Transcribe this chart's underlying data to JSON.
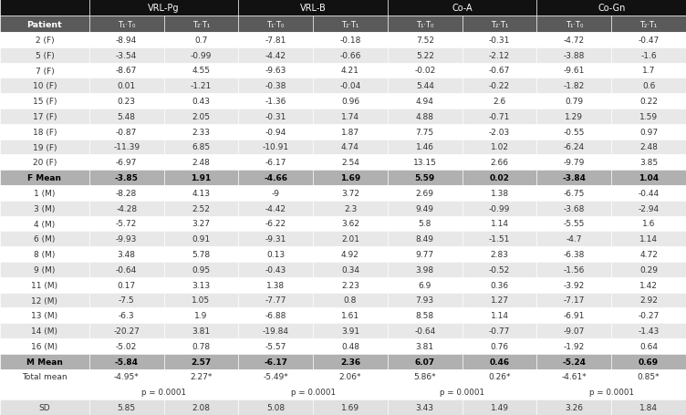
{
  "col_groups": [
    "VRL-Pg",
    "VRL-B",
    "Co-A",
    "Co-Gn"
  ],
  "col_headers": [
    "T₁·T₀",
    "T₂·T₁",
    "T₁·T₀",
    "T₂·T₁",
    "T₁·T₀",
    "T₂·T₁",
    "T₁·T₀",
    "T₂·T₁"
  ],
  "row_labels": [
    "2 (F)",
    "5 (F)",
    "7 (F)",
    "10 (F)",
    "15 (F)",
    "17 (F)",
    "18 (F)",
    "19 (F)",
    "20 (F)",
    "F Mean",
    "1 (M)",
    "3 (M)",
    "4 (M)",
    "6 (M)",
    "8 (M)",
    "9 (M)",
    "11 (M)",
    "12 (M)",
    "13 (M)",
    "14 (M)",
    "16 (M)",
    "M Mean",
    "Total mean",
    "p_row",
    "SD"
  ],
  "table_data": [
    [
      "-8.94",
      "0.7",
      "-7.81",
      "-0.18",
      "7.52",
      "-0.31",
      "-4.72",
      "-0.47"
    ],
    [
      "-3.54",
      "-0.99",
      "-4.42",
      "-0.66",
      "5.22",
      "-2.12",
      "-3.88",
      "-1.6"
    ],
    [
      "-8.67",
      "4.55",
      "-9.63",
      "4.21",
      "-0.02",
      "-0.67",
      "-9.61",
      "1.7"
    ],
    [
      "0.01",
      "-1.21",
      "-0.38",
      "-0.04",
      "5.44",
      "-0.22",
      "-1.82",
      "0.6"
    ],
    [
      "0.23",
      "0.43",
      "-1.36",
      "0.96",
      "4.94",
      "2.6",
      "0.79",
      "0.22"
    ],
    [
      "5.48",
      "2.05",
      "-0.31",
      "1.74",
      "4.88",
      "-0.71",
      "1.29",
      "1.59"
    ],
    [
      "-0.87",
      "2.33",
      "-0.94",
      "1.87",
      "7.75",
      "-2.03",
      "-0.55",
      "0.97"
    ],
    [
      "-11.39",
      "6.85",
      "-10.91",
      "4.74",
      "1.46",
      "1.02",
      "-6.24",
      "2.48"
    ],
    [
      "-6.97",
      "2.48",
      "-6.17",
      "2.54",
      "13.15",
      "2.66",
      "-9.79",
      "3.85"
    ],
    [
      "-3.85",
      "1.91",
      "-4.66",
      "1.69",
      "5.59",
      "0.02",
      "-3.84",
      "1.04"
    ],
    [
      "-8.28",
      "4.13",
      "-9",
      "3.72",
      "2.69",
      "1.38",
      "-6.75",
      "-0.44"
    ],
    [
      "-4.28",
      "2.52",
      "-4.42",
      "2.3",
      "9.49",
      "-0.99",
      "-3.68",
      "-2.94"
    ],
    [
      "-5.72",
      "3.27",
      "-6.22",
      "3.62",
      "5.8",
      "1.14",
      "-5.55",
      "1.6"
    ],
    [
      "-9.93",
      "0.91",
      "-9.31",
      "2.01",
      "8.49",
      "-1.51",
      "-4.7",
      "1.14"
    ],
    [
      "3.48",
      "5.78",
      "0.13",
      "4.92",
      "9.77",
      "2.83",
      "-6.38",
      "4.72"
    ],
    [
      "-0.64",
      "0.95",
      "-0.43",
      "0.34",
      "3.98",
      "-0.52",
      "-1.56",
      "0.29"
    ],
    [
      "0.17",
      "3.13",
      "1.38",
      "2.23",
      "6.9",
      "0.36",
      "-3.92",
      "1.42"
    ],
    [
      "-7.5",
      "1.05",
      "-7.77",
      "0.8",
      "7.93",
      "1.27",
      "-7.17",
      "2.92"
    ],
    [
      "-6.3",
      "1.9",
      "-6.88",
      "1.61",
      "8.58",
      "1.14",
      "-6.91",
      "-0.27"
    ],
    [
      "-20.27",
      "3.81",
      "-19.84",
      "3.91",
      "-0.64",
      "-0.77",
      "-9.07",
      "-1.43"
    ],
    [
      "-5.02",
      "0.78",
      "-5.57",
      "0.48",
      "3.81",
      "0.76",
      "-1.92",
      "0.64"
    ],
    [
      "-5.84",
      "2.57",
      "-6.17",
      "2.36",
      "6.07",
      "0.46",
      "-5.24",
      "0.69"
    ],
    [
      "-4.95*",
      "2.27*",
      "-5.49*",
      "2.06*",
      "5.86*",
      "0.26*",
      "-4.61*",
      "0.85*"
    ],
    [
      "p = 0.0001",
      "",
      "p = 0.0001",
      "",
      "p = 0.0001",
      "",
      "p = 0.0001",
      ""
    ],
    [
      "5.85",
      "2.08",
      "5.08",
      "1.69",
      "3.43",
      "1.49",
      "3.26",
      "1.84"
    ]
  ],
  "bold_rows": [
    9,
    21
  ],
  "top_header_bg": "#111111",
  "sub_header_bg": "#5a5a5a",
  "header_text_color": "#ffffff",
  "row_colors": [
    "#ffffff",
    "#e8e8e8"
  ],
  "mean_row_bg": "#b0b0b0",
  "mean_text_color": "#000000",
  "total_mean_bg": "#ffffff",
  "p_row_bg": "#ffffff",
  "sd_row_bg": "#e0e0e0",
  "normal_text_color": "#333333"
}
